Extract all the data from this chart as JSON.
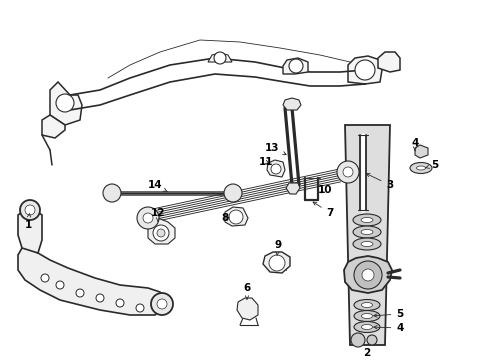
{
  "background_color": "#ffffff",
  "line_color": "#2a2a2a",
  "label_color": "#000000",
  "figsize": [
    4.89,
    3.6
  ],
  "dpi": 100,
  "font_size": 7.5,
  "lw": 0.8
}
